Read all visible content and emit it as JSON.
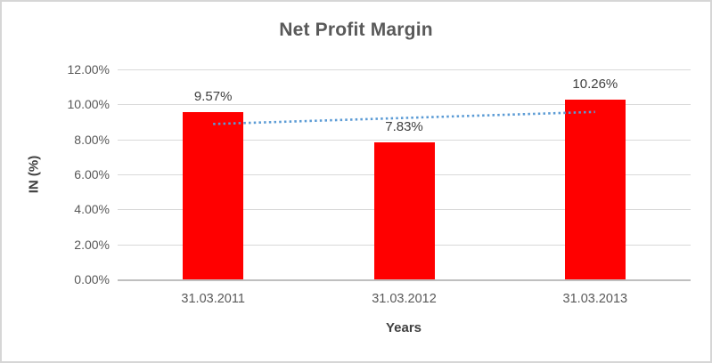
{
  "chart_data": {
    "type": "bar",
    "title": "Net Profit Margin",
    "xlabel": "Years",
    "ylabel": "IN (%)",
    "categories": [
      "31.03.2011",
      "31.03.2012",
      "31.03.2013"
    ],
    "values": [
      9.57,
      7.83,
      10.26
    ],
    "data_labels": [
      "9.57%",
      "7.83%",
      "10.26%"
    ],
    "ylim": [
      0,
      12
    ],
    "ytick_values": [
      0,
      2,
      4,
      6,
      8,
      10,
      12
    ],
    "ytick_labels": [
      "0.00%",
      "2.00%",
      "4.00%",
      "6.00%",
      "8.00%",
      "10.00%",
      "12.00%"
    ],
    "grid": true,
    "legend": "none",
    "bar_color": "#FF0000",
    "trendline": {
      "style": "dotted",
      "color": "#5B9BD5",
      "start_value": 8.88,
      "end_value": 9.57
    },
    "colors": {
      "title": "#595959",
      "tick_labels": "#595959",
      "axis_titles": "#404040",
      "data_labels": "#404040",
      "gridline": "#D9D9D9",
      "axis_line": "#BFBFBF",
      "background": "#FFFFFF",
      "frame_border": "#D6D6D6"
    }
  }
}
